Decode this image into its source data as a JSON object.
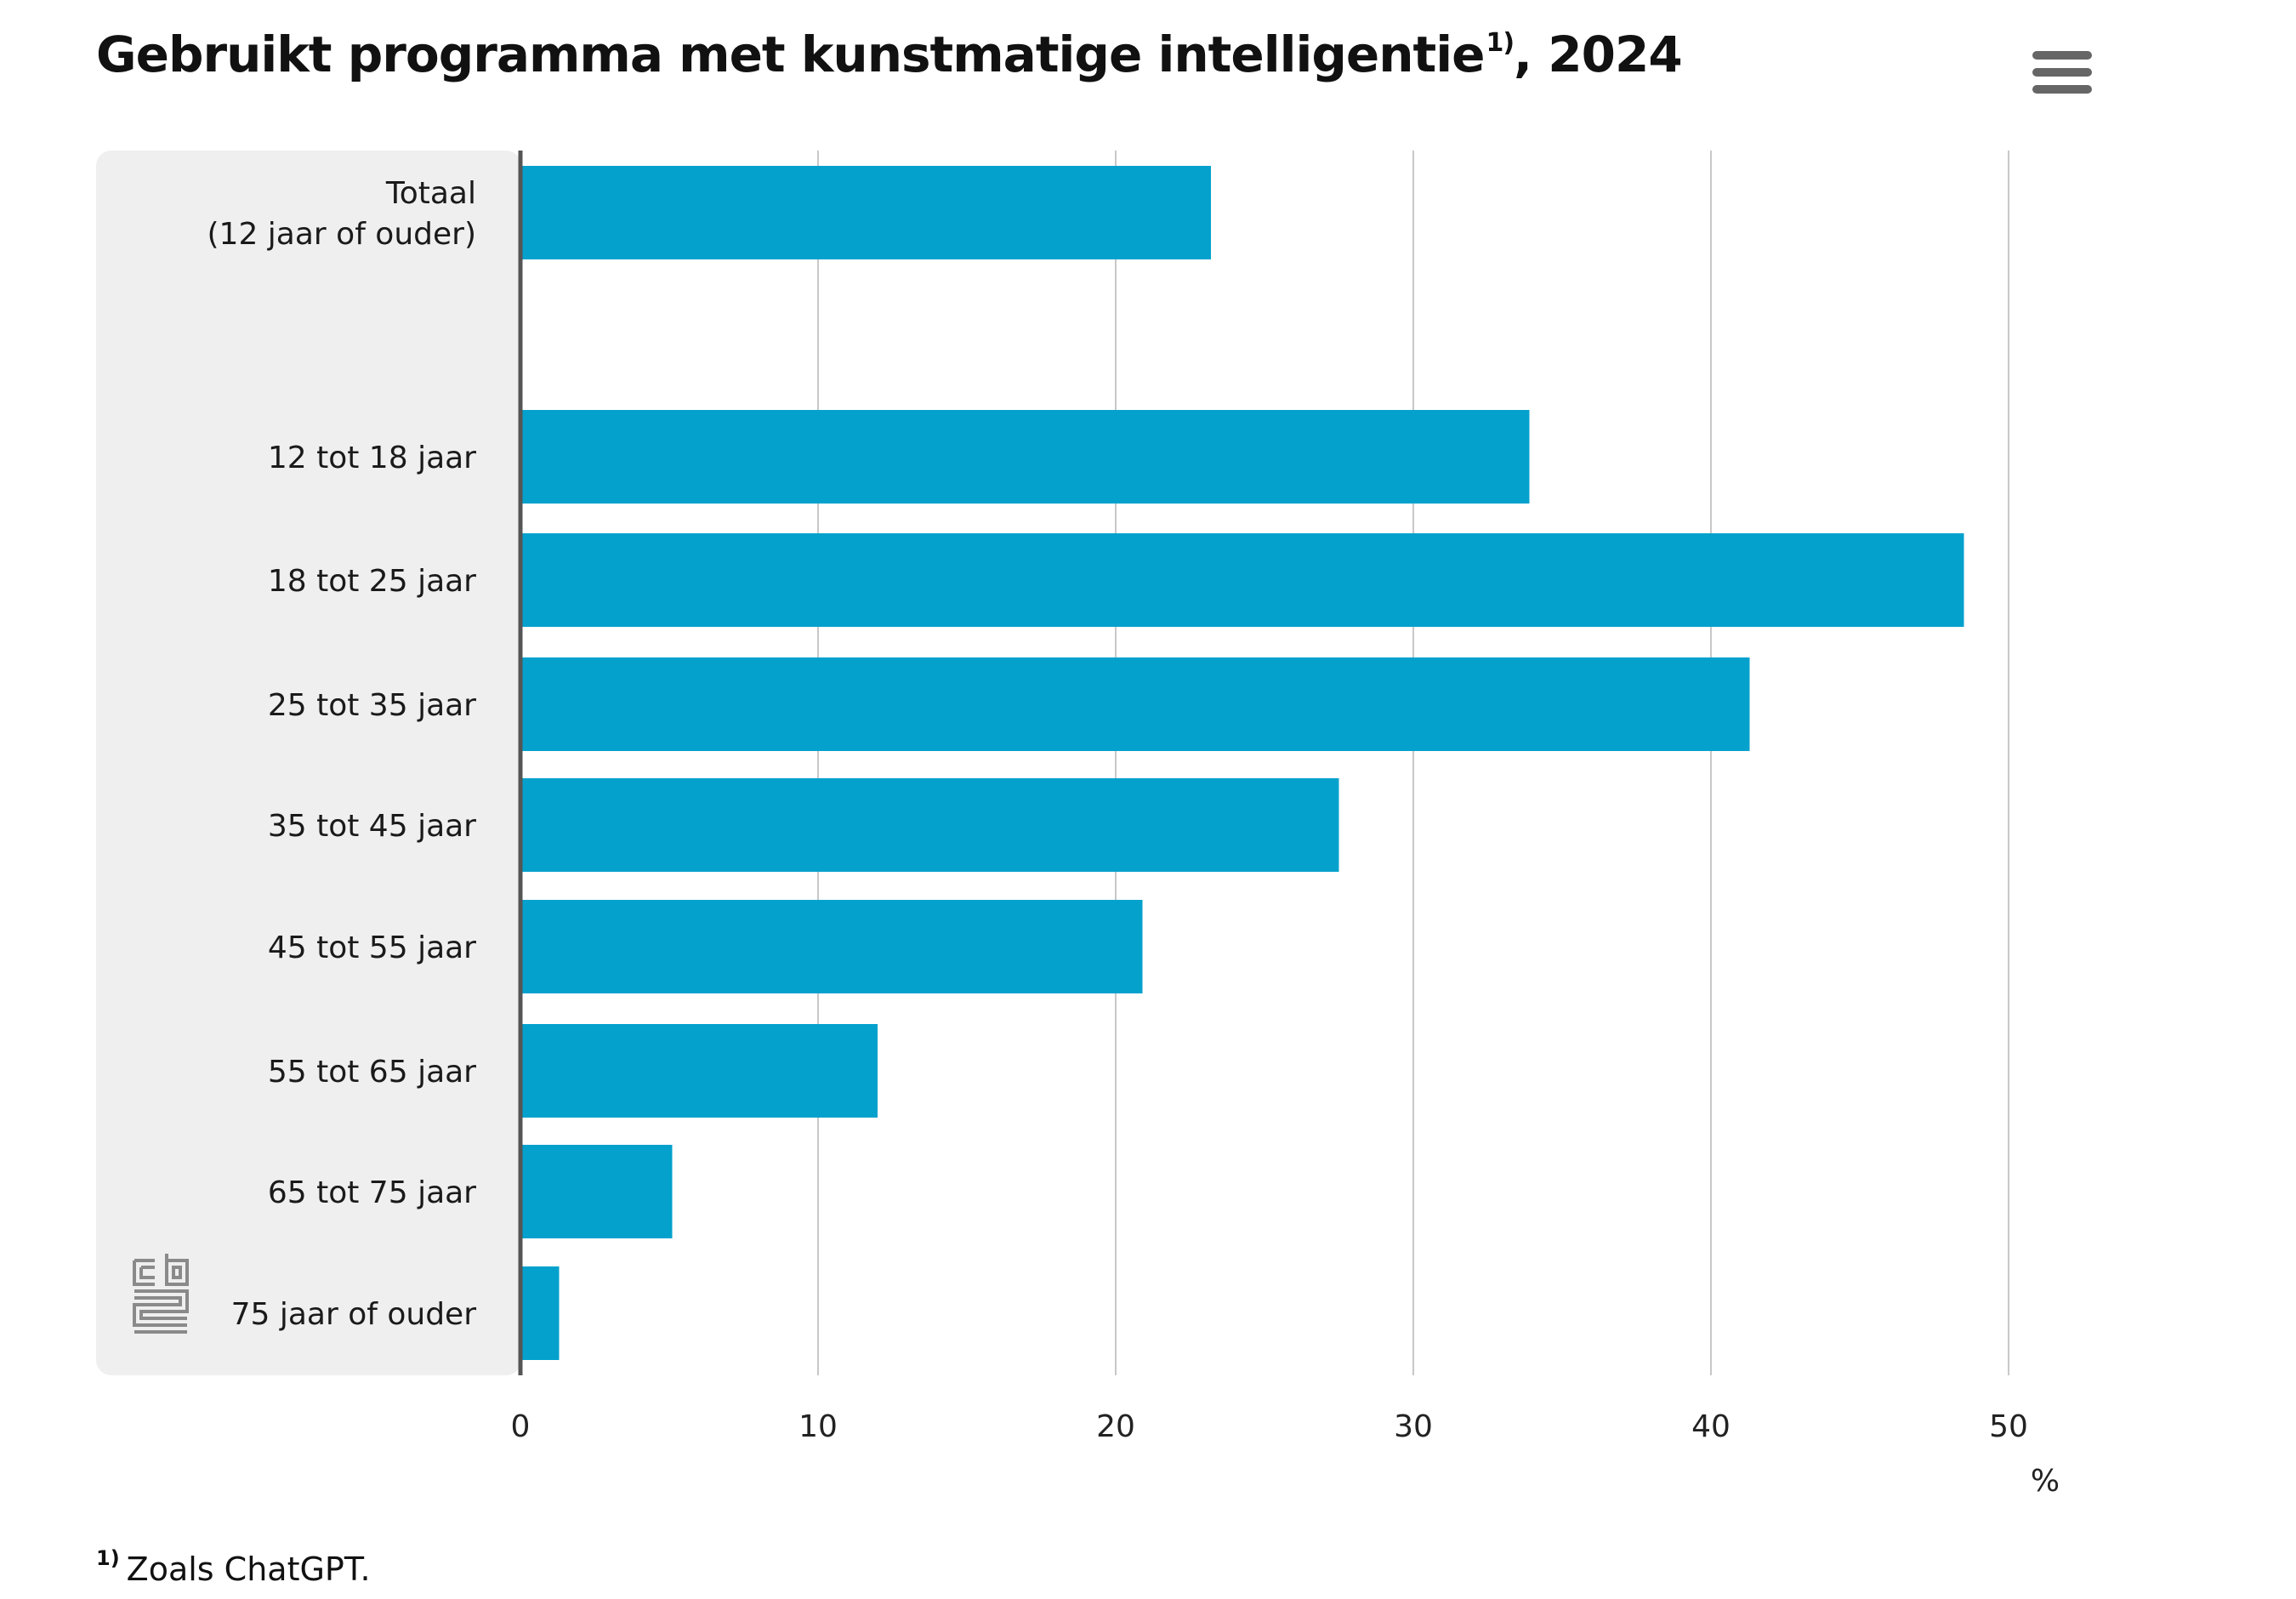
{
  "header": {
    "title": "Gebruikt programma met kunstmatige intelligentie",
    "title_note_marker": "1)",
    "title_suffix": ", 2024",
    "menu_icon": "hamburger-menu-icon"
  },
  "footnote": {
    "marker": "1)",
    "text": "Zoals ChatGPT."
  },
  "logo": {
    "name": "cbs-logo-icon"
  },
  "colors": {
    "bar": "#04A1CD",
    "label_panel": "#EFEFEF",
    "gridline": "#C8C8C8",
    "axis": "#555555"
  },
  "chart_data": {
    "type": "bar",
    "orientation": "horizontal",
    "categories": [
      [
        "Totaal",
        "(12 jaar of ouder)"
      ],
      [
        "12 tot 18 jaar"
      ],
      [
        "18 tot 25 jaar"
      ],
      [
        "25 tot 35 jaar"
      ],
      [
        "35 tot 45 jaar"
      ],
      [
        "45 tot 55 jaar"
      ],
      [
        "55 tot 65 jaar"
      ],
      [
        "65 tot 75 jaar"
      ],
      [
        "75 jaar of ouder"
      ]
    ],
    "values": [
      23.2,
      33.9,
      48.5,
      41.3,
      27.5,
      20.9,
      12.0,
      5.1,
      1.3
    ],
    "xlim": [
      0,
      50
    ],
    "xticks": [
      0,
      10,
      20,
      30,
      40,
      50
    ],
    "xlabel": "%",
    "grid": true
  }
}
